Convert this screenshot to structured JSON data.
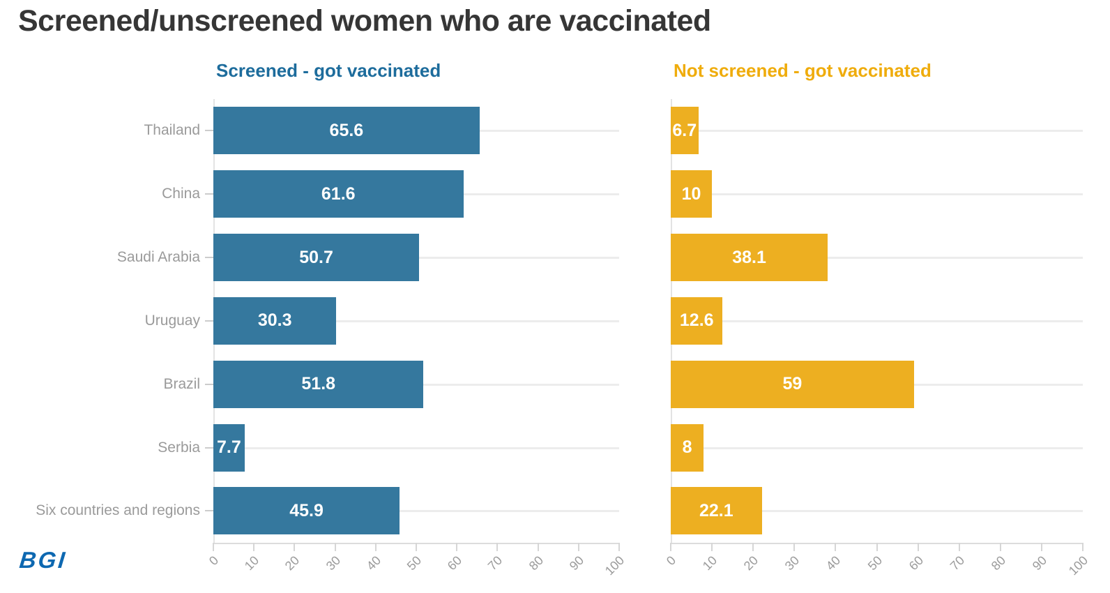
{
  "title": "Screened/unscreened women who are vaccinated",
  "branding": {
    "logo_text": "BGI",
    "logo_color": "#0d68b1"
  },
  "colors": {
    "background": "#ffffff",
    "title_text": "#363636",
    "category_text": "#9a9a9a",
    "axis_text": "#9b9b9b",
    "grid_line": "#ececec",
    "axis_line": "#dcdcdc",
    "value_label_text": "#ffffff",
    "screened_bar": "#35789e",
    "screened_title": "#1d6c9c",
    "not_screened_bar": "#edaf21",
    "not_screened_title": "#efac0c"
  },
  "chart_data": [
    {
      "type": "bar",
      "orientation": "horizontal",
      "title": "Screened - got vaccinated",
      "categories": [
        "Thailand",
        "China",
        "Saudi Arabia",
        "Uruguay",
        "Brazil",
        "Serbia",
        "Six countries and regions"
      ],
      "values": [
        65.6,
        61.6,
        50.7,
        30.3,
        51.8,
        7.7,
        45.9
      ],
      "xlim": [
        0,
        100
      ],
      "xticks": [
        0,
        10,
        20,
        30,
        40,
        50,
        60,
        70,
        80,
        90,
        100
      ],
      "bar_color": "#35789e",
      "title_color": "#1d6c9c",
      "value_labels": "inside, white, bold",
      "grid": "horizontal row lines only",
      "legend_position": "none"
    },
    {
      "type": "bar",
      "orientation": "horizontal",
      "title": "Not screened - got vaccinated",
      "categories": [
        "Thailand",
        "China",
        "Saudi Arabia",
        "Uruguay",
        "Brazil",
        "Serbia",
        "Six countries and regions"
      ],
      "values": [
        6.7,
        10,
        38.1,
        12.6,
        59,
        8,
        22.1
      ],
      "xlim": [
        0,
        100
      ],
      "xticks": [
        0,
        10,
        20,
        30,
        40,
        50,
        60,
        70,
        80,
        90,
        100
      ],
      "bar_color": "#edaf21",
      "title_color": "#efac0c",
      "value_labels": "inside, white, bold",
      "grid": "horizontal row lines only",
      "legend_position": "none"
    }
  ]
}
